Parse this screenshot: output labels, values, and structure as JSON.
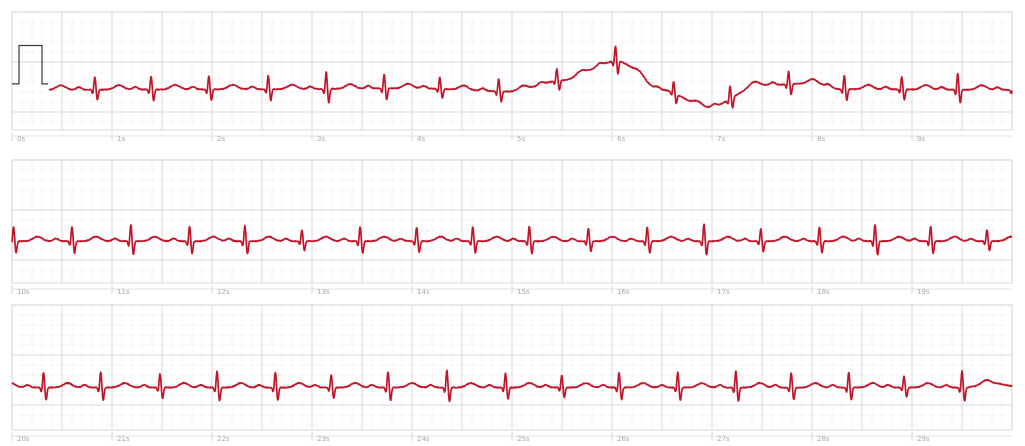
{
  "chart_data": {
    "type": "line",
    "title": "",
    "xlabel": "",
    "ylabel": "",
    "grid": true,
    "colors": {
      "trace": "#c0162c",
      "calibration": "#3a3a3a",
      "grid_minor": "#ececec",
      "grid_major": "#cfcfcf",
      "tick_text": "#a8a8a8"
    },
    "calibration_pulse_mV": 1.0,
    "heart_rate_bpm": 105,
    "strips": [
      {
        "xlim": [
          0,
          10
        ],
        "ylim": [
          -1.2,
          1.6
        ],
        "ticks": [
          "0s",
          "1s",
          "2s",
          "3s",
          "4s",
          "5s",
          "6s",
          "7s",
          "8s",
          "9s"
        ],
        "baseline_wander": [
          [
            0,
            0
          ],
          [
            2.5,
            0.02
          ],
          [
            4,
            0.05
          ],
          [
            5,
            -0.05
          ],
          [
            5.5,
            0.3
          ],
          [
            6.05,
            0.9
          ],
          [
            6.5,
            0.0
          ],
          [
            6.95,
            -0.55
          ],
          [
            7.5,
            0.15
          ],
          [
            8.0,
            0.2
          ],
          [
            8.3,
            0.02
          ],
          [
            10,
            0
          ]
        ]
      },
      {
        "xlim": [
          10,
          20
        ],
        "ylim": [
          -1.2,
          1.6
        ],
        "ticks": [
          "10s",
          "11s",
          "12s",
          "13s",
          "14s",
          "15s",
          "16s",
          "17s",
          "18s",
          "19s"
        ],
        "baseline_wander": [
          [
            10,
            0
          ],
          [
            20,
            0
          ]
        ]
      },
      {
        "xlim": [
          20,
          30
        ],
        "ylim": [
          -1.2,
          1.6
        ],
        "ticks": [
          "20s",
          "21s",
          "22s",
          "23s",
          "24s",
          "25s",
          "26s",
          "27s",
          "28s",
          "29s"
        ],
        "baseline_wander": [
          [
            20,
            0
          ],
          [
            29.5,
            0
          ],
          [
            29.85,
            0.12
          ],
          [
            30,
            0.05
          ]
        ]
      }
    ]
  }
}
